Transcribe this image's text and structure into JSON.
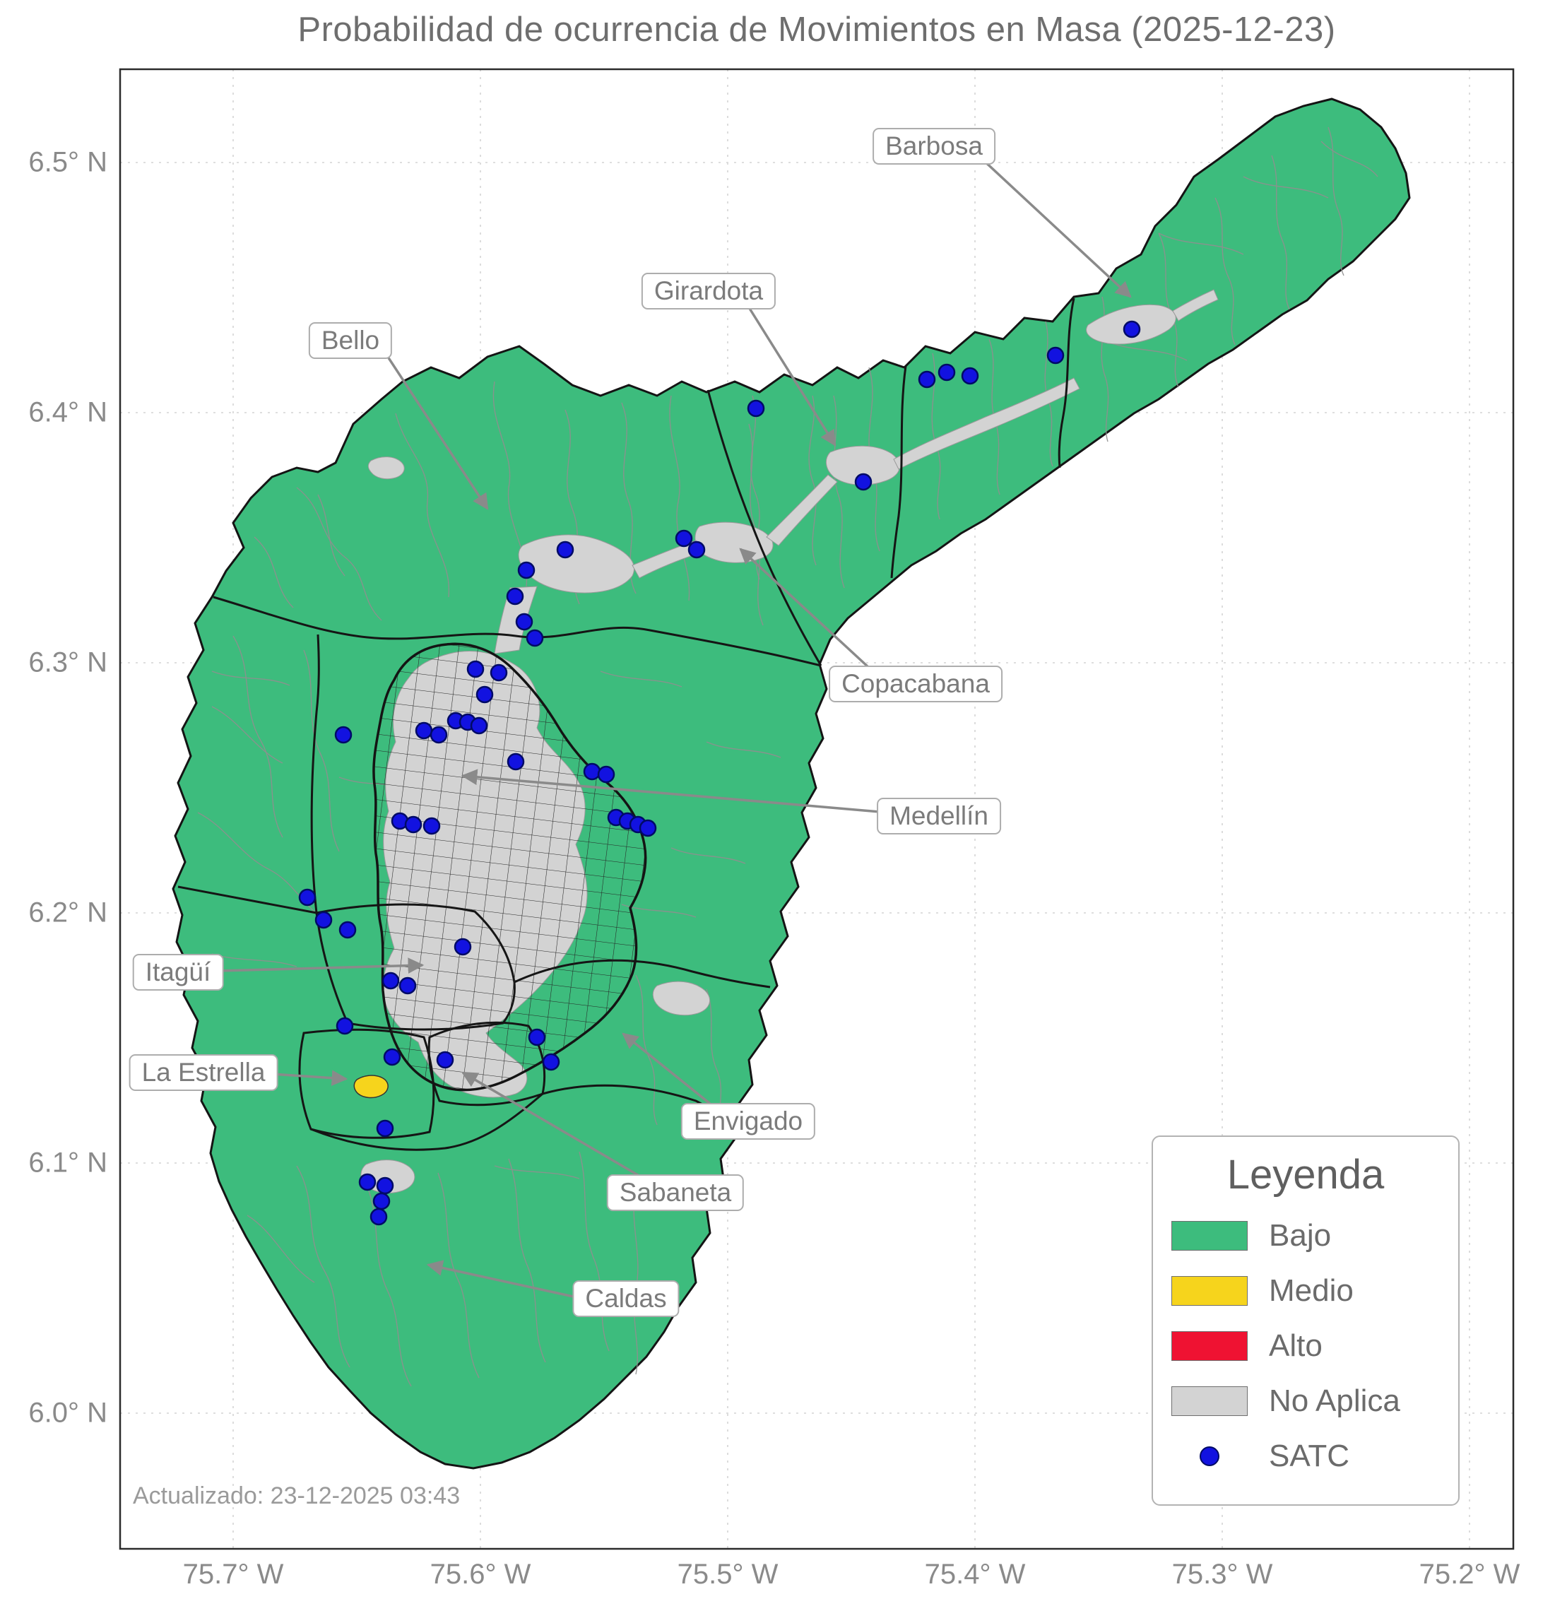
{
  "title": "Probabilidad de ocurrencia de Movimientos en Masa (2025-12-23)",
  "updated": "Actualizado: 23-12-2025 03:43",
  "axis": {
    "y_ticks": [
      "6.5° N",
      "6.4° N",
      "6.3° N",
      "6.2° N",
      "6.1° N",
      "6.0° N"
    ],
    "x_ticks": [
      "75.7° W",
      "75.6° W",
      "75.5° W",
      "75.4° W",
      "75.3° W",
      "75.2° W"
    ]
  },
  "legend": {
    "title": "Leyenda",
    "items": [
      {
        "label": "Bajo",
        "swatch": "#3dbc7d",
        "kind": "patch"
      },
      {
        "label": "Medio",
        "swatch": "#f6d41c",
        "kind": "patch"
      },
      {
        "label": "Alto",
        "swatch": "#ef1232",
        "kind": "patch"
      },
      {
        "label": "No Aplica",
        "swatch": "#d3d3d3",
        "kind": "patch"
      },
      {
        "label": "SATC",
        "swatch": "#1212e0",
        "kind": "point"
      }
    ]
  },
  "map": {
    "callouts": [
      {
        "label": "Barbosa"
      },
      {
        "label": "Girardota"
      },
      {
        "label": "Bello"
      },
      {
        "label": "Copacabana"
      },
      {
        "label": "Medellín"
      },
      {
        "label": "Itagüí"
      },
      {
        "label": "La Estrella"
      },
      {
        "label": "Envigado"
      },
      {
        "label": "Sabaneta"
      },
      {
        "label": "Caldas"
      }
    ],
    "classes": {
      "low": "Bajo",
      "medium": "Medio",
      "high": "Alto",
      "na": "No Aplica"
    },
    "colors": {
      "low": "#3dbc7d",
      "medium": "#f6d41c",
      "high": "#ef1232",
      "na": "#d3d3d3",
      "satc": "#1212e0"
    },
    "satc_points": [
      [
        1602,
        466
      ],
      [
        1494,
        503
      ],
      [
        1373,
        532
      ],
      [
        1340,
        527
      ],
      [
        1312,
        537
      ],
      [
        1222,
        682
      ],
      [
        1070,
        578
      ],
      [
        986,
        778
      ],
      [
        968,
        762
      ],
      [
        800,
        778
      ],
      [
        745,
        807
      ],
      [
        729,
        844
      ],
      [
        742,
        880
      ],
      [
        757,
        903
      ],
      [
        673,
        947
      ],
      [
        706,
        952
      ],
      [
        686,
        983
      ],
      [
        600,
        1034
      ],
      [
        621,
        1040
      ],
      [
        645,
        1020
      ],
      [
        662,
        1022
      ],
      [
        678,
        1027
      ],
      [
        486,
        1040
      ],
      [
        730,
        1078
      ],
      [
        838,
        1092
      ],
      [
        858,
        1096
      ],
      [
        872,
        1157
      ],
      [
        888,
        1162
      ],
      [
        903,
        1167
      ],
      [
        917,
        1172
      ],
      [
        566,
        1162
      ],
      [
        585,
        1167
      ],
      [
        611,
        1169
      ],
      [
        435,
        1270
      ],
      [
        458,
        1302
      ],
      [
        492,
        1316
      ],
      [
        655,
        1340
      ],
      [
        553,
        1388
      ],
      [
        577,
        1395
      ],
      [
        488,
        1452
      ],
      [
        760,
        1468
      ],
      [
        630,
        1500
      ],
      [
        780,
        1503
      ],
      [
        555,
        1496
      ],
      [
        545,
        1597
      ],
      [
        520,
        1673
      ],
      [
        545,
        1678
      ],
      [
        540,
        1700
      ],
      [
        536,
        1722
      ]
    ]
  }
}
